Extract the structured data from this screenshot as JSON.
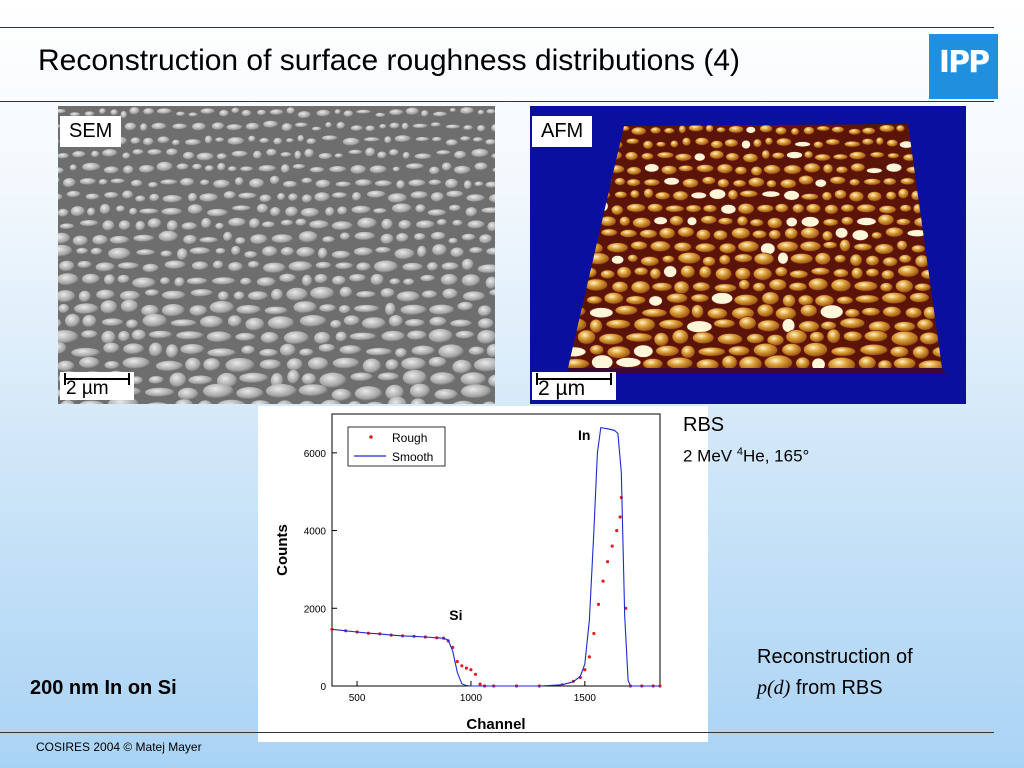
{
  "slide": {
    "title": "Reconstruction of surface roughness distributions (4)",
    "logo_text": "IPP",
    "logo_color": "#1f8fde",
    "footer": "COSIRES 2004 © Matej Mayer"
  },
  "sem_panel": {
    "label": "SEM",
    "scale_value": "2",
    "scale_unit": "µm"
  },
  "afm_panel": {
    "label": "AFM",
    "scale_value": "2",
    "scale_unit": "µm"
  },
  "rbs": {
    "title": "RBS",
    "params_prefix": "2 MeV ",
    "params_sup": "4",
    "params_suffix": "He, 165°"
  },
  "reconstruction": {
    "line1": "Reconstruction of",
    "line2_italic": "p(d)",
    "line2_rest": " from RBS"
  },
  "sample": "200 nm In on Si",
  "chart_data": {
    "type": "line",
    "xlabel": "Channel",
    "ylabel": "Counts",
    "xlim": [
      390,
      1830
    ],
    "ylim": [
      0,
      7000
    ],
    "xticks": [
      500,
      1000,
      1500
    ],
    "yticks": [
      0,
      2000,
      4000,
      6000
    ],
    "legend_position": "top-left",
    "annotations": [
      {
        "text": "Si",
        "x": 905,
        "y": 1700
      },
      {
        "text": "In",
        "x": 1470,
        "y": 6330
      }
    ],
    "series": [
      {
        "name": "Rough",
        "style": "points",
        "color": "#e02020",
        "x": [
          390,
          450,
          500,
          550,
          600,
          650,
          700,
          750,
          800,
          850,
          880,
          900,
          920,
          940,
          960,
          980,
          1000,
          1020,
          1040,
          1060,
          1100,
          1200,
          1300,
          1400,
          1450,
          1480,
          1500,
          1520,
          1540,
          1560,
          1580,
          1600,
          1620,
          1640,
          1655,
          1660,
          1680,
          1700,
          1750,
          1800,
          1830
        ],
        "y": [
          1460,
          1420,
          1390,
          1360,
          1340,
          1310,
          1290,
          1280,
          1260,
          1240,
          1230,
          1160,
          990,
          630,
          520,
          460,
          420,
          300,
          50,
          0,
          0,
          0,
          0,
          30,
          120,
          220,
          420,
          750,
          1350,
          2100,
          2700,
          3200,
          3600,
          4000,
          4350,
          4850,
          2000,
          0,
          0,
          0,
          0
        ]
      },
      {
        "name": "Smooth",
        "style": "line",
        "color": "#1a2bd0",
        "x": [
          390,
          450,
          500,
          550,
          600,
          650,
          700,
          750,
          800,
          850,
          880,
          900,
          920,
          940,
          960,
          980,
          1000,
          1100,
          1200,
          1300,
          1400,
          1450,
          1480,
          1500,
          1520,
          1540,
          1555,
          1570,
          1600,
          1630,
          1645,
          1660,
          1675,
          1690,
          1700,
          1750,
          1830
        ],
        "y": [
          1460,
          1420,
          1390,
          1360,
          1340,
          1310,
          1290,
          1280,
          1260,
          1240,
          1230,
          1180,
          900,
          350,
          60,
          10,
          0,
          0,
          0,
          0,
          30,
          110,
          250,
          560,
          1700,
          4000,
          6000,
          6650,
          6620,
          6580,
          6500,
          5500,
          1800,
          150,
          0,
          0,
          0
        ]
      }
    ]
  }
}
